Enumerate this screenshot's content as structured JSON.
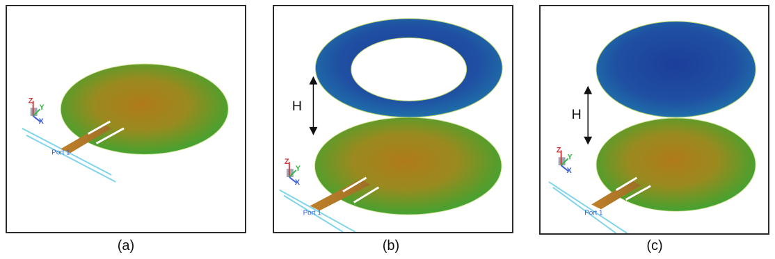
{
  "panels": [
    {
      "caption": "(a)",
      "port_label": "Port 1",
      "axes": {
        "z": "Z",
        "y": "Y",
        "x": "X"
      }
    },
    {
      "caption": "(b)",
      "port_label": "Port 1",
      "axes": {
        "z": "Z",
        "y": "Y",
        "x": "X"
      },
      "height_label": "H"
    },
    {
      "caption": "(c)",
      "port_label": "Port 1",
      "axes": {
        "z": "Z",
        "y": "Y",
        "x": "X"
      },
      "height_label": "H"
    }
  ],
  "colors": {
    "heatmap_warm": [
      "#b07a1a",
      "#8f8a1e",
      "#5e9b2a",
      "#2fa838"
    ],
    "heatmap_cool": [
      "#1c3e9a",
      "#1f6aa8",
      "#2f96b0"
    ],
    "feed_line": "#b0782a",
    "port_line": "#7fd4ec",
    "axis_z": "#d43b3b",
    "axis_y": "#35b74a",
    "axis_x": "#3a5bd4"
  }
}
